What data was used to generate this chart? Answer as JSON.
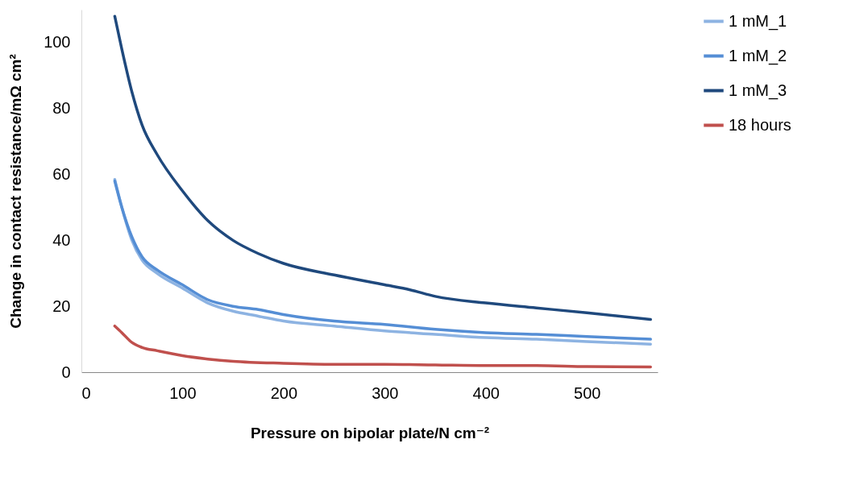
{
  "chart_data": {
    "type": "line",
    "xlabel": "Pressure on bipolar plate/N cm⁻²",
    "ylabel": "Change in contact resistance/mΩ cm²",
    "xlim": [
      0,
      570
    ],
    "ylim": [
      0,
      110
    ],
    "xticks": [
      0,
      100,
      200,
      300,
      400,
      500
    ],
    "yticks": [
      0,
      20,
      40,
      60,
      80,
      100
    ],
    "grid": false,
    "legend": "right",
    "line_style": "solid",
    "series": [
      {
        "name": "1 mM_1",
        "color": "#8db3e2",
        "x": [
          33,
          40,
          50,
          60,
          75,
          100,
          125,
          150,
          175,
          200,
          250,
          300,
          350,
          400,
          450,
          500,
          563
        ],
        "values": [
          58.5,
          50,
          40,
          34,
          30,
          25.5,
          21,
          18.5,
          17,
          15.5,
          14,
          12.5,
          11.5,
          10.5,
          10,
          9.3,
          8.5
        ]
      },
      {
        "name": "1 mM_2",
        "color": "#558ed5",
        "x": [
          33,
          40,
          50,
          60,
          75,
          100,
          125,
          150,
          175,
          200,
          250,
          300,
          350,
          400,
          450,
          500,
          563
        ],
        "values": [
          58,
          50,
          41,
          35,
          31,
          26.5,
          22,
          20,
          19,
          17.5,
          15.5,
          14.5,
          13,
          12,
          11.5,
          10.8,
          10
        ]
      },
      {
        "name": "1 mM_3",
        "color": "#1f497d",
        "x": [
          33,
          40,
          50,
          60,
          75,
          100,
          125,
          150,
          175,
          200,
          250,
          300,
          325,
          350,
          400,
          450,
          500,
          563
        ],
        "values": [
          108,
          98,
          85,
          75,
          66,
          55,
          46,
          40,
          36,
          33,
          29.5,
          26.5,
          25,
          23,
          21,
          19.5,
          18,
          16
        ]
      },
      {
        "name": "18 hours",
        "color": "#c0504d",
        "x": [
          33,
          40,
          50,
          60,
          75,
          100,
          125,
          150,
          200,
          250,
          300,
          350,
          400,
          450,
          500,
          563
        ],
        "values": [
          14,
          12,
          9,
          7.5,
          6.5,
          5,
          4,
          3.3,
          2.7,
          2.4,
          2.4,
          2.2,
          2,
          2,
          1.7,
          1.6
        ]
      }
    ]
  }
}
